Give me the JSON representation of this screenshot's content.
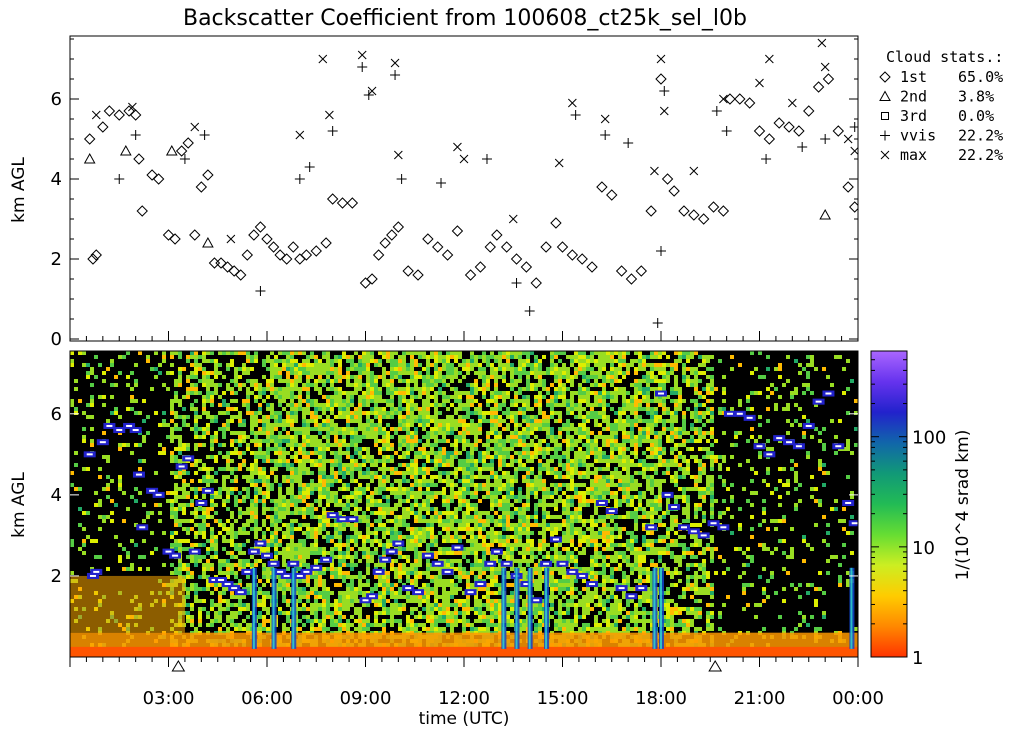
{
  "chart_data": [
    {
      "type": "scatter",
      "title": "Backscatter Coefficient from 100608_ct25k_sel_l0b",
      "ylabel": "km AGL",
      "ylim": [
        0,
        7.5
      ],
      "xlim_hours": [
        0,
        24
      ],
      "yticks": [
        "0",
        "2",
        "4",
        "6"
      ],
      "legend": {
        "title": "Cloud stats.:",
        "entries": [
          {
            "label": "1st",
            "value": "65.0%",
            "marker": "diamond"
          },
          {
            "label": "2nd",
            "value": "3.8%",
            "marker": "triangle"
          },
          {
            "label": "3rd",
            "value": "0.0%",
            "marker": "square"
          },
          {
            "label": "vvis",
            "value": "22.2%",
            "marker": "plus"
          },
          {
            "label": "max",
            "value": "22.2%",
            "marker": "cross"
          }
        ]
      },
      "series": [
        {
          "name": "1st",
          "marker": "diamond",
          "points": [
            [
              0.6,
              5.0
            ],
            [
              0.7,
              2.0
            ],
            [
              0.8,
              2.1
            ],
            [
              1.0,
              5.3
            ],
            [
              1.2,
              5.7
            ],
            [
              1.5,
              5.6
            ],
            [
              1.8,
              5.7
            ],
            [
              2.0,
              5.6
            ],
            [
              2.1,
              4.5
            ],
            [
              2.2,
              3.2
            ],
            [
              2.5,
              4.1
            ],
            [
              2.7,
              4.0
            ],
            [
              3.0,
              2.6
            ],
            [
              3.2,
              2.5
            ],
            [
              3.4,
              4.7
            ],
            [
              3.6,
              4.9
            ],
            [
              3.8,
              2.6
            ],
            [
              4.0,
              3.8
            ],
            [
              4.2,
              4.1
            ],
            [
              4.4,
              1.9
            ],
            [
              4.6,
              1.9
            ],
            [
              4.8,
              1.8
            ],
            [
              5.0,
              1.7
            ],
            [
              5.2,
              1.6
            ],
            [
              5.4,
              2.1
            ],
            [
              5.6,
              2.6
            ],
            [
              5.8,
              2.8
            ],
            [
              6.0,
              2.5
            ],
            [
              6.2,
              2.3
            ],
            [
              6.4,
              2.1
            ],
            [
              6.6,
              2.0
            ],
            [
              6.8,
              2.3
            ],
            [
              7.0,
              2.0
            ],
            [
              7.2,
              2.1
            ],
            [
              7.5,
              2.2
            ],
            [
              7.8,
              2.4
            ],
            [
              8.0,
              3.5
            ],
            [
              8.3,
              3.4
            ],
            [
              8.6,
              3.4
            ],
            [
              9.0,
              1.4
            ],
            [
              9.2,
              1.5
            ],
            [
              9.4,
              2.1
            ],
            [
              9.6,
              2.4
            ],
            [
              9.8,
              2.6
            ],
            [
              10.0,
              2.8
            ],
            [
              10.3,
              1.7
            ],
            [
              10.6,
              1.6
            ],
            [
              10.9,
              2.5
            ],
            [
              11.2,
              2.3
            ],
            [
              11.5,
              2.1
            ],
            [
              11.8,
              2.7
            ],
            [
              12.2,
              1.6
            ],
            [
              12.5,
              1.8
            ],
            [
              12.8,
              2.3
            ],
            [
              13.0,
              2.6
            ],
            [
              13.3,
              2.3
            ],
            [
              13.6,
              2.0
            ],
            [
              13.9,
              1.8
            ],
            [
              14.2,
              1.4
            ],
            [
              14.5,
              2.3
            ],
            [
              14.8,
              2.9
            ],
            [
              15.0,
              2.3
            ],
            [
              15.3,
              2.1
            ],
            [
              15.6,
              2.0
            ],
            [
              15.9,
              1.8
            ],
            [
              16.2,
              3.8
            ],
            [
              16.5,
              3.6
            ],
            [
              16.8,
              1.7
            ],
            [
              17.1,
              1.5
            ],
            [
              17.4,
              1.7
            ],
            [
              17.7,
              3.2
            ],
            [
              18.0,
              6.5
            ],
            [
              18.2,
              4.0
            ],
            [
              18.4,
              3.7
            ],
            [
              18.7,
              3.2
            ],
            [
              19.0,
              3.1
            ],
            [
              19.3,
              3.0
            ],
            [
              19.6,
              3.3
            ],
            [
              19.9,
              3.2
            ],
            [
              20.1,
              6.0
            ],
            [
              20.4,
              6.0
            ],
            [
              20.7,
              5.9
            ],
            [
              21.0,
              5.2
            ],
            [
              21.3,
              5.0
            ],
            [
              21.6,
              5.4
            ],
            [
              21.9,
              5.3
            ],
            [
              22.2,
              5.2
            ],
            [
              22.5,
              5.7
            ],
            [
              22.8,
              6.3
            ],
            [
              23.1,
              6.5
            ],
            [
              23.4,
              5.2
            ],
            [
              23.7,
              3.8
            ],
            [
              23.9,
              3.3
            ]
          ]
        },
        {
          "name": "2nd",
          "marker": "triangle",
          "points": [
            [
              0.6,
              4.5
            ],
            [
              1.7,
              4.7
            ],
            [
              3.1,
              4.7
            ],
            [
              4.2,
              2.4
            ],
            [
              23.0,
              3.1
            ]
          ]
        },
        {
          "name": "3rd",
          "marker": "square",
          "points": []
        },
        {
          "name": "vvis",
          "marker": "plus",
          "points": [
            [
              1.5,
              4.0
            ],
            [
              2.0,
              5.1
            ],
            [
              3.5,
              4.5
            ],
            [
              4.1,
              5.1
            ],
            [
              5.8,
              1.2
            ],
            [
              7.0,
              4.0
            ],
            [
              7.3,
              4.3
            ],
            [
              8.0,
              5.2
            ],
            [
              8.9,
              6.8
            ],
            [
              9.1,
              6.1
            ],
            [
              9.9,
              6.6
            ],
            [
              10.1,
              4.0
            ],
            [
              11.3,
              3.9
            ],
            [
              12.7,
              4.5
            ],
            [
              13.6,
              1.4
            ],
            [
              14.0,
              0.7
            ],
            [
              15.4,
              5.6
            ],
            [
              16.3,
              5.1
            ],
            [
              17.0,
              4.9
            ],
            [
              17.9,
              0.4
            ],
            [
              18.0,
              2.2
            ],
            [
              18.1,
              6.2
            ],
            [
              19.7,
              5.7
            ],
            [
              20.0,
              5.2
            ],
            [
              21.2,
              4.5
            ],
            [
              22.3,
              4.8
            ],
            [
              23.0,
              5.0
            ],
            [
              23.9,
              5.3
            ]
          ]
        },
        {
          "name": "max",
          "marker": "cross",
          "points": [
            [
              0.8,
              5.6
            ],
            [
              1.9,
              5.8
            ],
            [
              3.8,
              5.3
            ],
            [
              4.9,
              2.5
            ],
            [
              7.0,
              5.1
            ],
            [
              7.7,
              7.0
            ],
            [
              7.9,
              5.6
            ],
            [
              8.9,
              7.1
            ],
            [
              9.2,
              6.2
            ],
            [
              9.9,
              6.9
            ],
            [
              10.0,
              4.6
            ],
            [
              11.8,
              4.8
            ],
            [
              12.0,
              4.5
            ],
            [
              13.5,
              3.0
            ],
            [
              14.9,
              4.4
            ],
            [
              15.3,
              5.9
            ],
            [
              16.3,
              5.5
            ],
            [
              17.8,
              4.2
            ],
            [
              18.0,
              7.0
            ],
            [
              18.1,
              5.7
            ],
            [
              19.0,
              4.2
            ],
            [
              19.9,
              6.0
            ],
            [
              21.0,
              6.4
            ],
            [
              21.3,
              7.0
            ],
            [
              22.0,
              5.9
            ],
            [
              22.9,
              7.4
            ],
            [
              23.0,
              6.8
            ],
            [
              23.7,
              5.0
            ],
            [
              23.9,
              4.7
            ]
          ]
        }
      ]
    },
    {
      "type": "heatmap",
      "xlabel": "time (UTC)",
      "ylabel": "km AGL",
      "ylim": [
        0,
        7.5
      ],
      "xlim_hours": [
        0,
        24
      ],
      "xticks": [
        "03:00",
        "06:00",
        "09:00",
        "12:00",
        "15:00",
        "18:00",
        "21:00",
        "00:00"
      ],
      "yticks": [
        "2",
        "4",
        "6"
      ],
      "markers_on_time_axis": [
        3.3,
        19.65
      ],
      "colorbar": {
        "label": "1/(10^4 srad km)",
        "scale": "log",
        "range": [
          1,
          600
        ],
        "ticks": [
          "1",
          "10",
          "100"
        ],
        "colors": [
          "#ff3300",
          "#ff8800",
          "#ffcc00",
          "#ccee22",
          "#66dd33",
          "#22bb55",
          "#119977",
          "#1166aa",
          "#2222cc",
          "#6633ee",
          "#aa66ff"
        ]
      },
      "background_color": "#000000"
    }
  ]
}
